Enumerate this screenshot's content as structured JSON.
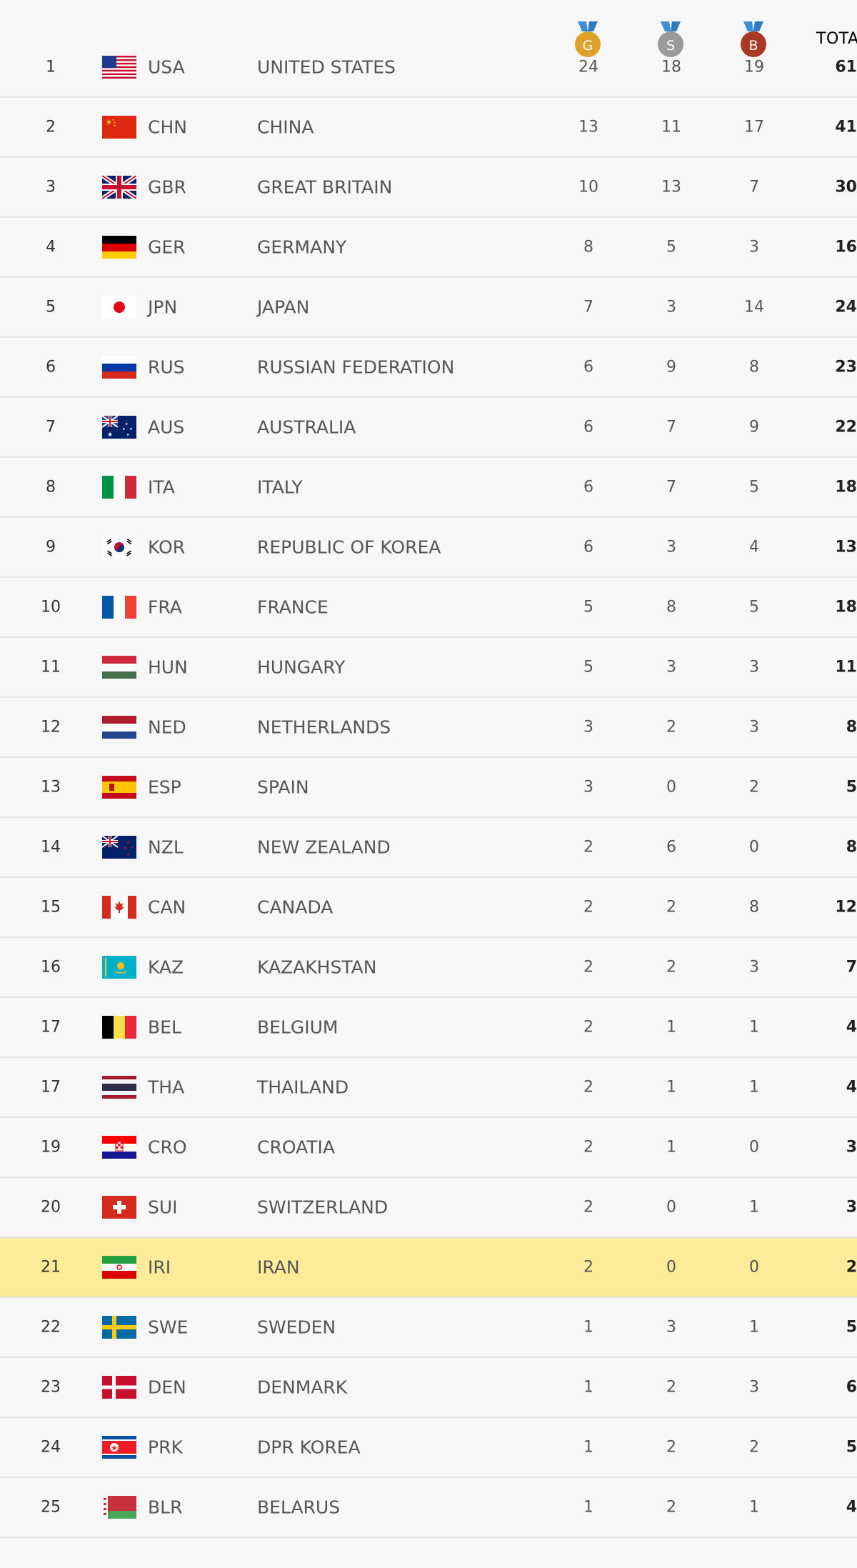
{
  "header": {
    "gold_label": "G",
    "silver_label": "S",
    "bronze_label": "B",
    "total_label": "TOTAL"
  },
  "colors": {
    "gold": "#e0a12a",
    "silver": "#9a9a9a",
    "bronze": "#a83a24",
    "ribbon": "#3d8fd3",
    "highlight": "#fcec99",
    "divider": "#e4e4e4"
  },
  "rows": [
    {
      "rank": "1",
      "code": "USA",
      "name": "UNITED STATES",
      "gold": "24",
      "silver": "18",
      "bronze": "19",
      "total": "61",
      "flag": "usa-flag-icon"
    },
    {
      "rank": "2",
      "code": "CHN",
      "name": "CHINA",
      "gold": "13",
      "silver": "11",
      "bronze": "17",
      "total": "41",
      "flag": "china-flag-icon"
    },
    {
      "rank": "3",
      "code": "GBR",
      "name": "GREAT BRITAIN",
      "gold": "10",
      "silver": "13",
      "bronze": "7",
      "total": "30",
      "flag": "great-britain-flag-icon"
    },
    {
      "rank": "4",
      "code": "GER",
      "name": "GERMANY",
      "gold": "8",
      "silver": "5",
      "bronze": "3",
      "total": "16",
      "flag": "germany-flag-icon"
    },
    {
      "rank": "5",
      "code": "JPN",
      "name": "JAPAN",
      "gold": "7",
      "silver": "3",
      "bronze": "14",
      "total": "24",
      "flag": "japan-flag-icon"
    },
    {
      "rank": "6",
      "code": "RUS",
      "name": "RUSSIAN FEDERATION",
      "gold": "6",
      "silver": "9",
      "bronze": "8",
      "total": "23",
      "flag": "russia-flag-icon"
    },
    {
      "rank": "7",
      "code": "AUS",
      "name": "AUSTRALIA",
      "gold": "6",
      "silver": "7",
      "bronze": "9",
      "total": "22",
      "flag": "australia-flag-icon"
    },
    {
      "rank": "8",
      "code": "ITA",
      "name": "ITALY",
      "gold": "6",
      "silver": "7",
      "bronze": "5",
      "total": "18",
      "flag": "italy-flag-icon"
    },
    {
      "rank": "9",
      "code": "KOR",
      "name": "REPUBLIC OF KOREA",
      "gold": "6",
      "silver": "3",
      "bronze": "4",
      "total": "13",
      "flag": "korea-flag-icon"
    },
    {
      "rank": "10",
      "code": "FRA",
      "name": "FRANCE",
      "gold": "5",
      "silver": "8",
      "bronze": "5",
      "total": "18",
      "flag": "france-flag-icon"
    },
    {
      "rank": "11",
      "code": "HUN",
      "name": "HUNGARY",
      "gold": "5",
      "silver": "3",
      "bronze": "3",
      "total": "11",
      "flag": "hungary-flag-icon"
    },
    {
      "rank": "12",
      "code": "NED",
      "name": "NETHERLANDS",
      "gold": "3",
      "silver": "2",
      "bronze": "3",
      "total": "8",
      "flag": "netherlands-flag-icon"
    },
    {
      "rank": "13",
      "code": "ESP",
      "name": "SPAIN",
      "gold": "3",
      "silver": "0",
      "bronze": "2",
      "total": "5",
      "flag": "spain-flag-icon"
    },
    {
      "rank": "14",
      "code": "NZL",
      "name": "NEW ZEALAND",
      "gold": "2",
      "silver": "6",
      "bronze": "0",
      "total": "8",
      "flag": "new-zealand-flag-icon"
    },
    {
      "rank": "15",
      "code": "CAN",
      "name": "CANADA",
      "gold": "2",
      "silver": "2",
      "bronze": "8",
      "total": "12",
      "flag": "canada-flag-icon"
    },
    {
      "rank": "16",
      "code": "KAZ",
      "name": "KAZAKHSTAN",
      "gold": "2",
      "silver": "2",
      "bronze": "3",
      "total": "7",
      "flag": "kazakhstan-flag-icon"
    },
    {
      "rank": "17",
      "code": "BEL",
      "name": "BELGIUM",
      "gold": "2",
      "silver": "1",
      "bronze": "1",
      "total": "4",
      "flag": "belgium-flag-icon"
    },
    {
      "rank": "17",
      "code": "THA",
      "name": "THAILAND",
      "gold": "2",
      "silver": "1",
      "bronze": "1",
      "total": "4",
      "flag": "thailand-flag-icon"
    },
    {
      "rank": "19",
      "code": "CRO",
      "name": "CROATIA",
      "gold": "2",
      "silver": "1",
      "bronze": "0",
      "total": "3",
      "flag": "croatia-flag-icon"
    },
    {
      "rank": "20",
      "code": "SUI",
      "name": "SWITZERLAND",
      "gold": "2",
      "silver": "0",
      "bronze": "1",
      "total": "3",
      "flag": "switzerland-flag-icon"
    },
    {
      "rank": "21",
      "code": "IRI",
      "name": "IRAN",
      "gold": "2",
      "silver": "0",
      "bronze": "0",
      "total": "2",
      "flag": "iran-flag-icon",
      "highlighted": true
    },
    {
      "rank": "22",
      "code": "SWE",
      "name": "SWEDEN",
      "gold": "1",
      "silver": "3",
      "bronze": "1",
      "total": "5",
      "flag": "sweden-flag-icon"
    },
    {
      "rank": "23",
      "code": "DEN",
      "name": "DENMARK",
      "gold": "1",
      "silver": "2",
      "bronze": "3",
      "total": "6",
      "flag": "denmark-flag-icon"
    },
    {
      "rank": "24",
      "code": "PRK",
      "name": "DPR KOREA",
      "gold": "1",
      "silver": "2",
      "bronze": "2",
      "total": "5",
      "flag": "dpr-korea-flag-icon"
    },
    {
      "rank": "25",
      "code": "BLR",
      "name": "BELARUS",
      "gold": "1",
      "silver": "2",
      "bronze": "1",
      "total": "4",
      "flag": "belarus-flag-icon"
    }
  ]
}
